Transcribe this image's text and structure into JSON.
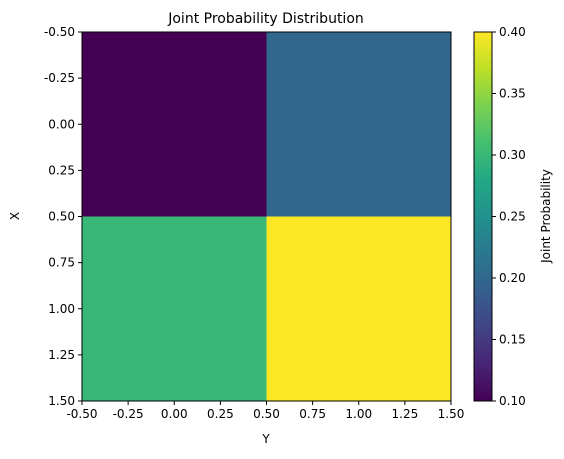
{
  "chart_data": {
    "type": "heatmap",
    "title": "Joint Probability Distribution",
    "xlabel": "Y",
    "ylabel": "X",
    "xlim": [
      -0.5,
      1.5
    ],
    "ylim": [
      1.5,
      -0.5
    ],
    "y_inverted": true,
    "x_ticks": [
      "-0.50",
      "-0.25",
      "0.00",
      "0.25",
      "0.50",
      "0.75",
      "1.00",
      "1.25",
      "1.50"
    ],
    "y_ticks": [
      "-0.50",
      "-0.25",
      "0.00",
      "0.25",
      "0.50",
      "0.75",
      "1.00",
      "1.25",
      "1.50"
    ],
    "x_tick_values": [
      -0.5,
      -0.25,
      0,
      0.25,
      0.5,
      0.75,
      1.0,
      1.25,
      1.5
    ],
    "y_tick_values": [
      -0.5,
      -0.25,
      0,
      0.25,
      0.5,
      0.75,
      1.0,
      1.25,
      1.5
    ],
    "cells": [
      {
        "row": 0,
        "col": 0,
        "value": 0.1
      },
      {
        "row": 0,
        "col": 1,
        "value": 0.2
      },
      {
        "row": 1,
        "col": 0,
        "value": 0.3
      },
      {
        "row": 1,
        "col": 1,
        "value": 0.4
      }
    ],
    "colorbar": {
      "label": "Joint Probability",
      "range": [
        0.1,
        0.4
      ],
      "ticks": [
        "0.10",
        "0.15",
        "0.20",
        "0.25",
        "0.30",
        "0.35",
        "0.40"
      ],
      "tick_values": [
        0.1,
        0.15,
        0.2,
        0.25,
        0.3,
        0.35,
        0.4
      ],
      "colormap": "viridis"
    },
    "grid": false
  }
}
